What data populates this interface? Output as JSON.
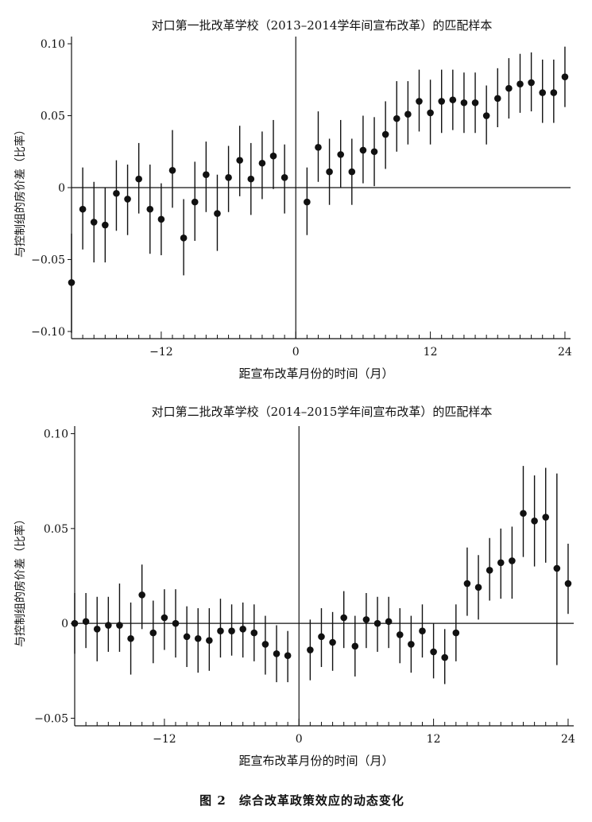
{
  "figure_caption": "图 2　综合改革政策效应的动态变化",
  "chart_data": [
    {
      "type": "scatter",
      "error_bars": true,
      "title": "对口第一批改革学校（2013–2014学年间宣布改革）的匹配样本",
      "xlabel": "距宣布改革月份的时间（月）",
      "ylabel": "与控制组的房价差（比率）",
      "xlim": [
        -20,
        24.5
      ],
      "ylim": [
        -0.105,
        0.105
      ],
      "xticks": [
        -12,
        0,
        12,
        24
      ],
      "xtick_labels": [
        "−12",
        "0",
        "12",
        "24"
      ],
      "yticks": [
        0.1,
        0.05,
        0,
        -0.05,
        -0.1
      ],
      "ytick_labels": [
        "0.10",
        "0.05",
        "0",
        "−0.05",
        "−0.10"
      ],
      "hline": 0,
      "vline": 0,
      "points": [
        {
          "x": -20,
          "y": -0.066,
          "lo": -0.101,
          "hi": -0.032
        },
        {
          "x": -19,
          "y": -0.015,
          "lo": -0.043,
          "hi": 0.014
        },
        {
          "x": -18,
          "y": -0.024,
          "lo": -0.052,
          "hi": 0.004
        },
        {
          "x": -17,
          "y": -0.026,
          "lo": -0.052,
          "hi": 0.0
        },
        {
          "x": -16,
          "y": -0.004,
          "lo": -0.03,
          "hi": 0.019
        },
        {
          "x": -15,
          "y": -0.008,
          "lo": -0.033,
          "hi": 0.016
        },
        {
          "x": -14,
          "y": 0.006,
          "lo": -0.018,
          "hi": 0.031
        },
        {
          "x": -13,
          "y": -0.015,
          "lo": -0.046,
          "hi": 0.016
        },
        {
          "x": -12,
          "y": -0.022,
          "lo": -0.047,
          "hi": 0.003
        },
        {
          "x": -11,
          "y": 0.012,
          "lo": -0.014,
          "hi": 0.04
        },
        {
          "x": -10,
          "y": -0.035,
          "lo": -0.061,
          "hi": -0.008
        },
        {
          "x": -9,
          "y": -0.01,
          "lo": -0.037,
          "hi": 0.018
        },
        {
          "x": -8,
          "y": 0.009,
          "lo": -0.017,
          "hi": 0.032
        },
        {
          "x": -7,
          "y": -0.018,
          "lo": -0.044,
          "hi": 0.009
        },
        {
          "x": -6,
          "y": 0.007,
          "lo": -0.017,
          "hi": 0.029
        },
        {
          "x": -5,
          "y": 0.019,
          "lo": -0.006,
          "hi": 0.043
        },
        {
          "x": -4,
          "y": 0.006,
          "lo": -0.019,
          "hi": 0.031
        },
        {
          "x": -3,
          "y": 0.017,
          "lo": -0.008,
          "hi": 0.039
        },
        {
          "x": -2,
          "y": 0.022,
          "lo": -0.001,
          "hi": 0.047
        },
        {
          "x": -1,
          "y": 0.007,
          "lo": -0.018,
          "hi": 0.03
        },
        {
          "x": 1,
          "y": -0.01,
          "lo": -0.033,
          "hi": 0.014
        },
        {
          "x": 2,
          "y": 0.028,
          "lo": 0.004,
          "hi": 0.053
        },
        {
          "x": 3,
          "y": 0.011,
          "lo": -0.012,
          "hi": 0.034
        },
        {
          "x": 4,
          "y": 0.023,
          "lo": 0.0,
          "hi": 0.047
        },
        {
          "x": 5,
          "y": 0.011,
          "lo": -0.012,
          "hi": 0.034
        },
        {
          "x": 6,
          "y": 0.026,
          "lo": 0.003,
          "hi": 0.05
        },
        {
          "x": 7,
          "y": 0.025,
          "lo": 0.001,
          "hi": 0.049
        },
        {
          "x": 8,
          "y": 0.037,
          "lo": 0.013,
          "hi": 0.06
        },
        {
          "x": 9,
          "y": 0.048,
          "lo": 0.025,
          "hi": 0.074
        },
        {
          "x": 10,
          "y": 0.051,
          "lo": 0.03,
          "hi": 0.074
        },
        {
          "x": 11,
          "y": 0.06,
          "lo": 0.039,
          "hi": 0.082
        },
        {
          "x": 12,
          "y": 0.052,
          "lo": 0.03,
          "hi": 0.075
        },
        {
          "x": 13,
          "y": 0.06,
          "lo": 0.038,
          "hi": 0.082
        },
        {
          "x": 14,
          "y": 0.061,
          "lo": 0.04,
          "hi": 0.082
        },
        {
          "x": 15,
          "y": 0.059,
          "lo": 0.038,
          "hi": 0.08
        },
        {
          "x": 16,
          "y": 0.059,
          "lo": 0.038,
          "hi": 0.08
        },
        {
          "x": 17,
          "y": 0.05,
          "lo": 0.03,
          "hi": 0.071
        },
        {
          "x": 18,
          "y": 0.062,
          "lo": 0.042,
          "hi": 0.083
        },
        {
          "x": 19,
          "y": 0.069,
          "lo": 0.048,
          "hi": 0.09
        },
        {
          "x": 20,
          "y": 0.072,
          "lo": 0.052,
          "hi": 0.093
        },
        {
          "x": 21,
          "y": 0.073,
          "lo": 0.053,
          "hi": 0.094
        },
        {
          "x": 22,
          "y": 0.066,
          "lo": 0.045,
          "hi": 0.089
        },
        {
          "x": 23,
          "y": 0.066,
          "lo": 0.045,
          "hi": 0.089
        },
        {
          "x": 24,
          "y": 0.077,
          "lo": 0.056,
          "hi": 0.098
        }
      ]
    },
    {
      "type": "scatter",
      "error_bars": true,
      "title": "对口第二批改革学校（2014–2015学年间宣布改革）的匹配样本",
      "xlabel": "距宣布改革月份的时间（月）",
      "ylabel": "与控制组的房价差（比率）",
      "xlim": [
        -20,
        24.5
      ],
      "ylim": [
        -0.054,
        0.104
      ],
      "xticks": [
        -12,
        0,
        12,
        24
      ],
      "xtick_labels": [
        "−12",
        "0",
        "12",
        "24"
      ],
      "yticks": [
        0.1,
        0.05,
        0,
        -0.05
      ],
      "ytick_labels": [
        "0.10",
        "0.05",
        "0",
        "−0.05"
      ],
      "hline": 0,
      "vline": 0,
      "points": [
        {
          "x": -20,
          "y": 0.0,
          "lo": -0.016,
          "hi": 0.016
        },
        {
          "x": -19,
          "y": 0.001,
          "lo": -0.013,
          "hi": 0.016
        },
        {
          "x": -18,
          "y": -0.003,
          "lo": -0.02,
          "hi": 0.014
        },
        {
          "x": -17,
          "y": -0.001,
          "lo": -0.015,
          "hi": 0.014
        },
        {
          "x": -16,
          "y": -0.001,
          "lo": -0.015,
          "hi": 0.021
        },
        {
          "x": -15,
          "y": -0.008,
          "lo": -0.027,
          "hi": 0.011
        },
        {
          "x": -14,
          "y": 0.015,
          "lo": -0.003,
          "hi": 0.031
        },
        {
          "x": -13,
          "y": -0.005,
          "lo": -0.021,
          "hi": 0.012
        },
        {
          "x": -12,
          "y": 0.003,
          "lo": -0.014,
          "hi": 0.018
        },
        {
          "x": -11,
          "y": 0.0,
          "lo": -0.018,
          "hi": 0.018
        },
        {
          "x": -10,
          "y": -0.007,
          "lo": -0.023,
          "hi": 0.009
        },
        {
          "x": -9,
          "y": -0.008,
          "lo": -0.026,
          "hi": 0.008
        },
        {
          "x": -8,
          "y": -0.009,
          "lo": -0.025,
          "hi": 0.008
        },
        {
          "x": -7,
          "y": -0.004,
          "lo": -0.018,
          "hi": 0.013
        },
        {
          "x": -6,
          "y": -0.004,
          "lo": -0.017,
          "hi": 0.01
        },
        {
          "x": -5,
          "y": -0.003,
          "lo": -0.018,
          "hi": 0.011
        },
        {
          "x": -4,
          "y": -0.005,
          "lo": -0.02,
          "hi": 0.01
        },
        {
          "x": -3,
          "y": -0.011,
          "lo": -0.027,
          "hi": 0.004
        },
        {
          "x": -2,
          "y": -0.016,
          "lo": -0.031,
          "hi": -0.001
        },
        {
          "x": -1,
          "y": -0.017,
          "lo": -0.031,
          "hi": -0.004
        },
        {
          "x": 1,
          "y": -0.014,
          "lo": -0.03,
          "hi": 0.002
        },
        {
          "x": 2,
          "y": -0.007,
          "lo": -0.023,
          "hi": 0.008
        },
        {
          "x": 3,
          "y": -0.01,
          "lo": -0.025,
          "hi": 0.006
        },
        {
          "x": 4,
          "y": 0.003,
          "lo": -0.013,
          "hi": 0.017
        },
        {
          "x": 5,
          "y": -0.012,
          "lo": -0.028,
          "hi": 0.004
        },
        {
          "x": 6,
          "y": 0.002,
          "lo": -0.013,
          "hi": 0.016
        },
        {
          "x": 7,
          "y": 0.0,
          "lo": -0.015,
          "hi": 0.014
        },
        {
          "x": 8,
          "y": 0.001,
          "lo": -0.013,
          "hi": 0.014
        },
        {
          "x": 9,
          "y": -0.006,
          "lo": -0.021,
          "hi": 0.008
        },
        {
          "x": 10,
          "y": -0.011,
          "lo": -0.026,
          "hi": 0.004
        },
        {
          "x": 11,
          "y": -0.004,
          "lo": -0.018,
          "hi": 0.01
        },
        {
          "x": 12,
          "y": -0.015,
          "lo": -0.029,
          "hi": 0.0
        },
        {
          "x": 13,
          "y": -0.018,
          "lo": -0.032,
          "hi": -0.003
        },
        {
          "x": 14,
          "y": -0.005,
          "lo": -0.02,
          "hi": 0.01
        },
        {
          "x": 15,
          "y": 0.021,
          "lo": 0.004,
          "hi": 0.04
        },
        {
          "x": 16,
          "y": 0.019,
          "lo": 0.002,
          "hi": 0.036
        },
        {
          "x": 17,
          "y": 0.028,
          "lo": 0.012,
          "hi": 0.045
        },
        {
          "x": 18,
          "y": 0.032,
          "lo": 0.013,
          "hi": 0.05
        },
        {
          "x": 19,
          "y": 0.033,
          "lo": 0.013,
          "hi": 0.051
        },
        {
          "x": 20,
          "y": 0.058,
          "lo": 0.035,
          "hi": 0.083
        },
        {
          "x": 21,
          "y": 0.054,
          "lo": 0.03,
          "hi": 0.078
        },
        {
          "x": 22,
          "y": 0.056,
          "lo": 0.032,
          "hi": 0.082
        },
        {
          "x": 23,
          "y": 0.029,
          "lo": -0.022,
          "hi": 0.079
        },
        {
          "x": 24,
          "y": 0.021,
          "lo": 0.005,
          "hi": 0.042
        }
      ]
    }
  ]
}
